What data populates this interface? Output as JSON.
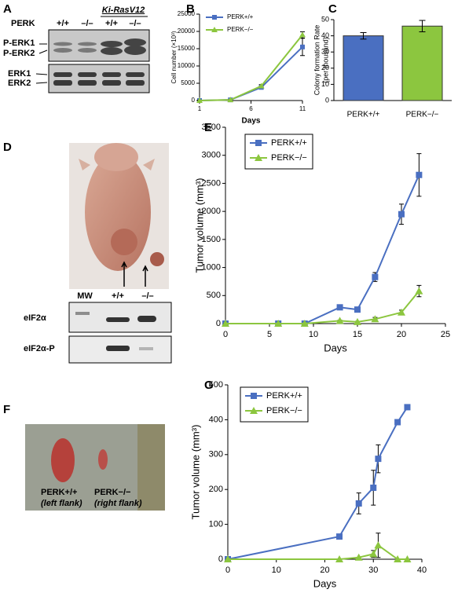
{
  "panels": {
    "A": {
      "letter": "A",
      "row_label": "PERK",
      "genotypes": [
        "+/+",
        "–/–",
        "+/+",
        "–/–"
      ],
      "group_label": "Ki-RasV12",
      "bands": [
        "P-ERK1",
        "P-ERK2",
        "ERK1",
        "ERK2"
      ]
    },
    "D": {
      "letter": "D",
      "lanes": [
        "MW",
        "+/+",
        "–/–"
      ],
      "bands": [
        "eIF2α",
        "eIF2α-P"
      ]
    },
    "F": {
      "letter": "F",
      "labels": [
        "PERK+/+",
        "(left flank)",
        "PERK−/−",
        "(right flank)"
      ]
    }
  },
  "chart_data": [
    {
      "type": "line",
      "panel_label": "B",
      "xlabel": "Days",
      "ylabel": [
        "Cell number (×10³)"
      ],
      "xlim": [
        1,
        11
      ],
      "xticks": [
        1,
        6,
        11
      ],
      "ylim": [
        0,
        25000
      ],
      "yticks": [
        0,
        5000,
        10000,
        15000,
        20000,
        25000
      ],
      "legend": "upper left",
      "legend_box": false,
      "series": [
        {
          "name": "PERK+/+",
          "color": "#4a6fc1",
          "marker": "square",
          "x": [
            1,
            4,
            7,
            11
          ],
          "values": [
            0,
            200,
            3800,
            15500
          ],
          "errors": [
            100,
            100,
            400,
            2500
          ]
        },
        {
          "name": "PERK−/−",
          "color": "#8cc63f",
          "marker": "triangle",
          "x": [
            1,
            4,
            7,
            11
          ],
          "values": [
            0,
            200,
            4200,
            19000
          ],
          "errors": [
            100,
            100,
            400,
            900
          ]
        }
      ]
    },
    {
      "type": "bar",
      "panel_label": "C",
      "ylabel": [
        "Colony formation Rate",
        "(per thousand)"
      ],
      "ylim": [
        0,
        50
      ],
      "yticks": [
        0,
        10,
        20,
        30,
        40,
        50
      ],
      "categories": [
        "PERK+/+",
        "PERK−/−"
      ],
      "values": [
        40,
        46
      ],
      "errors": [
        2,
        3.5
      ],
      "colors": [
        "#4a6fc1",
        "#8cc63f"
      ]
    },
    {
      "type": "line",
      "panel_label": "E",
      "xlabel": "Days",
      "ylabel": [
        "Tumor volume (mm³)"
      ],
      "xlim": [
        0,
        25
      ],
      "xticks": [
        0,
        5,
        10,
        15,
        20,
        25
      ],
      "ylim": [
        0,
        3500
      ],
      "yticks": [
        0,
        500,
        1000,
        1500,
        2000,
        2500,
        3000,
        3500
      ],
      "legend": "upper left",
      "legend_box": true,
      "series": [
        {
          "name": "PERK+/+",
          "color": "#4a6fc1",
          "marker": "square",
          "x": [
            0,
            6,
            9,
            13,
            15,
            17,
            20,
            22
          ],
          "values": [
            0,
            0,
            0,
            290,
            250,
            830,
            1950,
            2650
          ],
          "errors": [
            0,
            0,
            0,
            20,
            20,
            80,
            180,
            380
          ]
        },
        {
          "name": "PERK−/−",
          "color": "#8cc63f",
          "marker": "triangle",
          "x": [
            0,
            6,
            9,
            13,
            15,
            17,
            20,
            22
          ],
          "values": [
            0,
            0,
            0,
            50,
            30,
            80,
            200,
            580
          ],
          "errors": [
            0,
            0,
            0,
            10,
            10,
            30,
            40,
            100
          ]
        }
      ]
    },
    {
      "type": "line",
      "panel_label": "G",
      "xlabel": "Days",
      "ylabel": [
        "Tumor volume (mm³)"
      ],
      "xlim": [
        0,
        40
      ],
      "xticks": [
        0,
        10,
        20,
        30,
        40
      ],
      "ylim": [
        0,
        500
      ],
      "yticks": [
        0,
        100,
        200,
        300,
        400,
        500
      ],
      "legend": "upper left",
      "legend_box": true,
      "series": [
        {
          "name": "PERK+/+",
          "color": "#4a6fc1",
          "marker": "square",
          "x": [
            0,
            23,
            27,
            30,
            31,
            35,
            37
          ],
          "values": [
            0,
            65,
            160,
            205,
            288,
            393,
            436
          ],
          "errors": [
            0,
            0,
            30,
            50,
            40,
            0,
            0
          ]
        },
        {
          "name": "PERK−/−",
          "color": "#8cc63f",
          "marker": "triangle",
          "x": [
            0,
            23,
            27,
            30,
            31,
            35,
            37
          ],
          "values": [
            0,
            0,
            5,
            15,
            40,
            0,
            0
          ],
          "errors": [
            0,
            0,
            0,
            10,
            35,
            0,
            0
          ]
        }
      ]
    }
  ]
}
